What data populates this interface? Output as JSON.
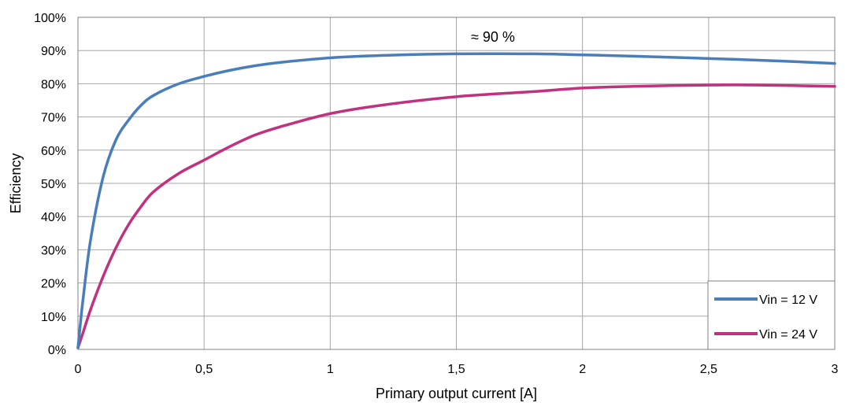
{
  "chart_data": {
    "type": "line",
    "title": "",
    "xlabel": "Primary output current [A]",
    "ylabel": "Efficiency",
    "xlim": [
      0,
      3
    ],
    "ylim": [
      0,
      100
    ],
    "x_ticks": [
      0,
      0.5,
      1,
      1.5,
      2,
      2.5,
      3
    ],
    "x_tick_labels": [
      "0",
      "0,5",
      "1",
      "1,5",
      "2",
      "2,5",
      "3"
    ],
    "y_ticks": [
      0,
      10,
      20,
      30,
      40,
      50,
      60,
      70,
      80,
      90,
      100
    ],
    "y_tick_labels": [
      "0%",
      "10%",
      "20%",
      "30%",
      "40%",
      "50%",
      "60%",
      "70%",
      "80%",
      "90%",
      "100%"
    ],
    "grid": true,
    "legend_position": "bottom-right",
    "annotation": "≈ 90 %",
    "series": [
      {
        "name": "Vin = 12 V",
        "color": "#4a7ebb",
        "x": [
          0,
          0.01,
          0.02,
          0.05,
          0.1,
          0.15,
          0.2,
          0.25,
          0.3,
          0.4,
          0.5,
          0.6,
          0.7,
          0.8,
          1.0,
          1.2,
          1.5,
          1.8,
          2.0,
          2.2,
          2.5,
          2.8,
          3.0
        ],
        "values": [
          0.5,
          8,
          15,
          33,
          52,
          63,
          69,
          73.5,
          76.5,
          80,
          82.2,
          84,
          85.4,
          86.4,
          87.8,
          88.5,
          89,
          89,
          88.7,
          88.3,
          87.6,
          86.8,
          86.1
        ]
      },
      {
        "name": "Vin = 24 V",
        "color": "#c0317f",
        "x": [
          0,
          0.02,
          0.05,
          0.1,
          0.15,
          0.2,
          0.25,
          0.3,
          0.4,
          0.5,
          0.6,
          0.7,
          0.8,
          1.0,
          1.2,
          1.5,
          1.8,
          2.0,
          2.2,
          2.5,
          2.7,
          3.0
        ],
        "values": [
          0.5,
          5,
          12,
          22,
          30.5,
          37.5,
          43,
          47.5,
          53,
          57,
          61,
          64.5,
          67,
          71,
          73.5,
          76.1,
          77.6,
          78.7,
          79.2,
          79.6,
          79.6,
          79.2
        ]
      }
    ]
  }
}
